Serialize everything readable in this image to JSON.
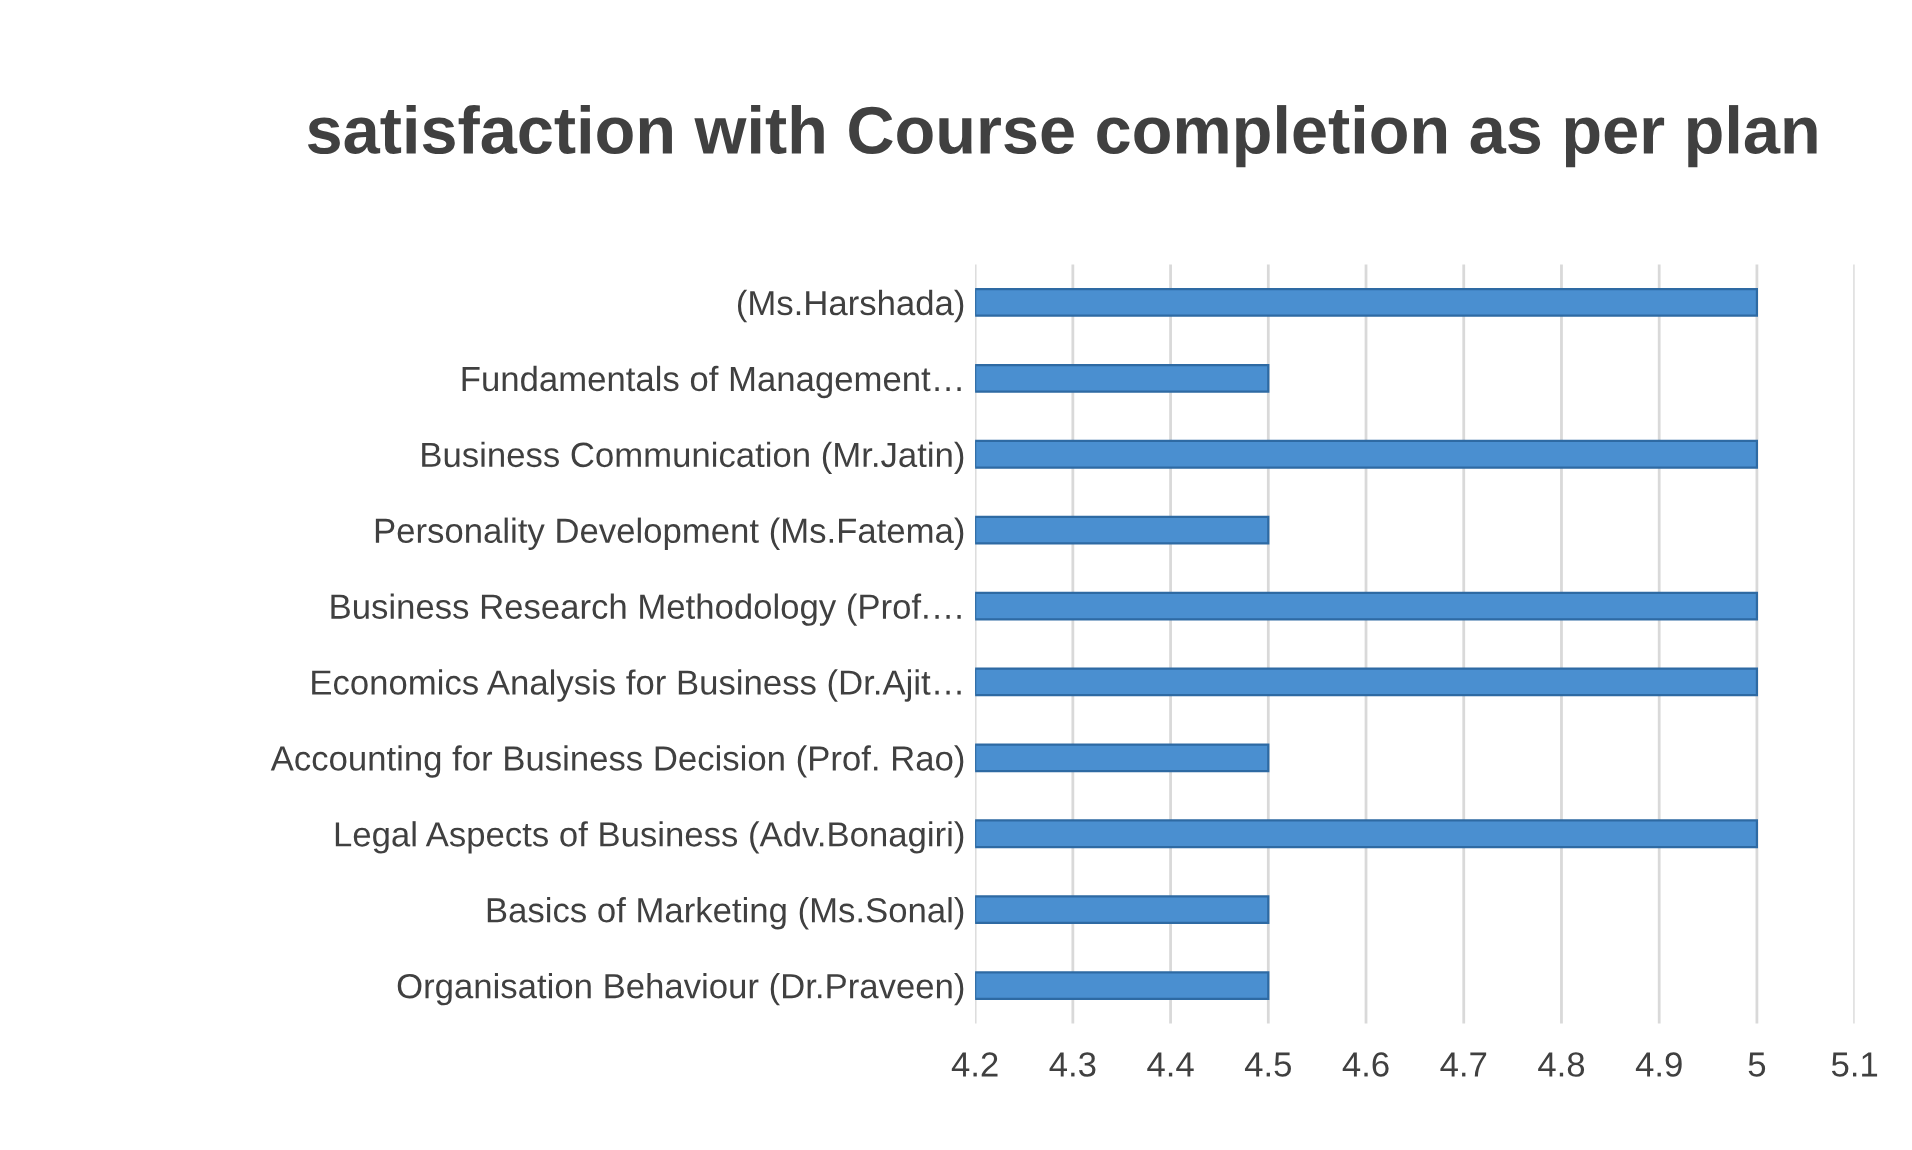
{
  "chart_data": {
    "type": "bar",
    "orientation": "horizontal",
    "title": "satisfaction with Course completion as per plan",
    "categories": [
      "(Ms.Harshada)",
      "Fundamentals of Management…",
      "Business Communication (Mr.Jatin)",
      "Personality Development (Ms.Fatema)",
      "Business Research Methodology (Prof.…",
      "Economics Analysis for Business (Dr.Ajit…",
      "Accounting for Business Decision (Prof. Rao)",
      "Legal Aspects of Business (Adv.Bonagiri)",
      "Basics of Marketing (Ms.Sonal)",
      "Organisation Behaviour (Dr.Praveen)"
    ],
    "values": [
      5,
      4.5,
      5,
      4.5,
      5,
      5,
      4.5,
      5,
      4.5,
      4.5
    ],
    "color": "#4a8fd0",
    "xlim": [
      4.2,
      5.1
    ],
    "xticks": [
      4.2,
      4.3,
      4.4,
      4.5,
      4.6,
      4.7,
      4.8,
      4.9,
      5,
      5.1
    ],
    "grid": "x",
    "legend": false
  }
}
